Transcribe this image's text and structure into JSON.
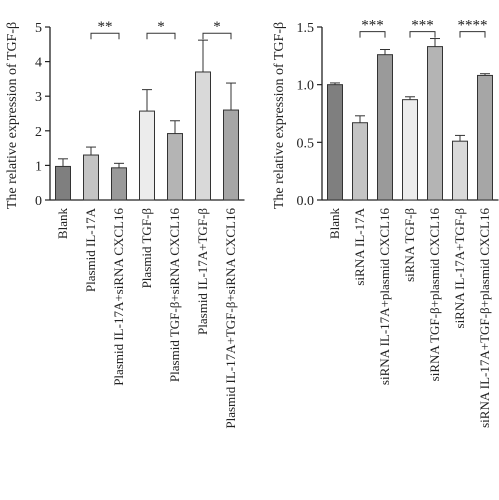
{
  "chart_data": [
    {
      "type": "bar",
      "ylabel": "The relative expression of TGF-β",
      "ylim": [
        0,
        5
      ],
      "yticks": [
        "0",
        "1",
        "2",
        "3",
        "4",
        "5"
      ],
      "categories": [
        "Blank",
        "Plasmid IL-17A",
        "Plasmid IL-17A+siRNA CXCL16",
        "Plasmid TGF-β",
        "Plasmid TGF-β+siRNA CXCL16",
        "Plasmid IL-17A+TGF-β",
        "Plasmid IL-17A+TGF-β+siRNA CXCL16"
      ],
      "values": [
        0.97,
        1.3,
        0.93,
        2.57,
        1.92,
        3.7,
        2.6
      ],
      "errors": [
        0.22,
        0.23,
        0.13,
        0.62,
        0.37,
        0.92,
        0.78
      ],
      "bar_colors": [
        "#7f7f7f",
        "#c4c4c4",
        "#9a9a9a",
        "#ececec",
        "#b4b4b4",
        "#d9d9d9",
        "#a6a6a6"
      ],
      "significance": [
        {
          "from": 1,
          "to": 2,
          "label": "**",
          "y": 4.82
        },
        {
          "from": 3,
          "to": 4,
          "label": "*",
          "y": 4.82
        },
        {
          "from": 5,
          "to": 6,
          "label": "*",
          "y": 4.82
        }
      ]
    },
    {
      "type": "bar",
      "ylabel": "The relative expression of TGF-β",
      "ylim": [
        0,
        1.5
      ],
      "yticks": [
        "0.0",
        "0.5",
        "1.0",
        "1.5"
      ],
      "categories": [
        "Blank",
        "siRNA IL-17A",
        "siRNA IL-17A+plasmid CXCL16",
        "siRNA TGF-β",
        "siRNA TGF-β+plasmid CXCL16",
        "siRNA IL-17A+TGF-β",
        "siRNA IL-17A+TGF-β+plasmid CXCL16"
      ],
      "values": [
        1.0,
        0.67,
        1.26,
        0.87,
        1.33,
        0.51,
        1.08
      ],
      "errors": [
        0.015,
        0.06,
        0.045,
        0.025,
        0.07,
        0.05,
        0.015
      ],
      "bar_colors": [
        "#7f7f7f",
        "#c4c4c4",
        "#9a9a9a",
        "#ececec",
        "#b4b4b4",
        "#d9d9d9",
        "#a6a6a6"
      ],
      "significance": [
        {
          "from": 1,
          "to": 2,
          "label": "***",
          "y": 1.46
        },
        {
          "from": 3,
          "to": 4,
          "label": "***",
          "y": 1.46
        },
        {
          "from": 5,
          "to": 6,
          "label": "****",
          "y": 1.46
        }
      ]
    }
  ]
}
